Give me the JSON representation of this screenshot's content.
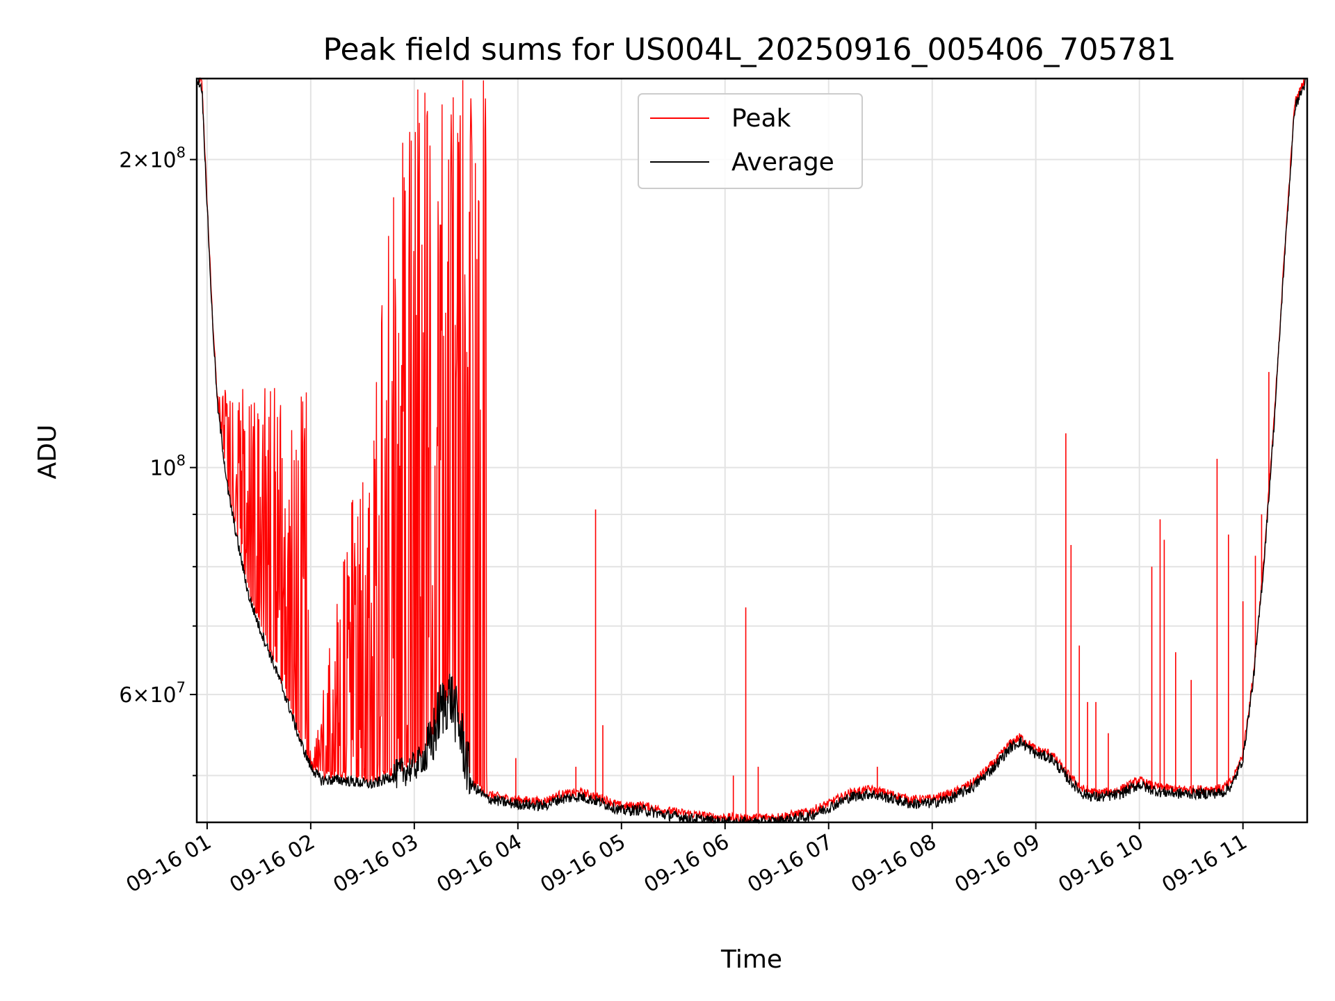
{
  "chart_data": {
    "type": "line",
    "title": "Peak field sums for US004L_20250916_005406_705781",
    "xlabel": "Time",
    "ylabel": "ADU",
    "xlim_hours": [
      0.9,
      11.62
    ],
    "ylim": [
      45000000,
      240000000
    ],
    "y_scale": "log",
    "grid": true,
    "legend_position": "upper center",
    "x_ticks": [
      {
        "hour": 1,
        "label": "09-16 01"
      },
      {
        "hour": 2,
        "label": "09-16 02"
      },
      {
        "hour": 3,
        "label": "09-16 03"
      },
      {
        "hour": 4,
        "label": "09-16 04"
      },
      {
        "hour": 5,
        "label": "09-16 05"
      },
      {
        "hour": 6,
        "label": "09-16 06"
      },
      {
        "hour": 7,
        "label": "09-16 07"
      },
      {
        "hour": 8,
        "label": "09-16 08"
      },
      {
        "hour": 9,
        "label": "09-16 09"
      },
      {
        "hour": 10,
        "label": "09-16 10"
      },
      {
        "hour": 11,
        "label": "09-16 11"
      }
    ],
    "y_major_ticks": [
      {
        "value": 60000000,
        "mant": "6",
        "exp": "7"
      },
      {
        "value": 100000000,
        "mant": "",
        "exp": "8"
      },
      {
        "value": 200000000,
        "mant": "2",
        "exp": "8"
      }
    ],
    "y_minor_ticks": [
      50000000,
      70000000,
      80000000,
      90000000
    ],
    "series": [
      {
        "name": "Peak",
        "color": "#ff0000",
        "spike_ranges": [
          {
            "from": 1.1,
            "to": 2.0,
            "max": 120000000
          },
          {
            "from": 2.0,
            "to": 2.95,
            "max": 240000000
          },
          {
            "from": 2.95,
            "to": 3.7,
            "max": 240000000
          }
        ],
        "spikes": [
          [
            3.98,
            52000000
          ],
          [
            4.56,
            51000000
          ],
          [
            4.75,
            91000000
          ],
          [
            4.82,
            56000000
          ],
          [
            6.08,
            50000000
          ],
          [
            6.2,
            73000000
          ],
          [
            6.32,
            51000000
          ],
          [
            7.47,
            51000000
          ],
          [
            9.29,
            108000000
          ],
          [
            9.34,
            84000000
          ],
          [
            9.42,
            67000000
          ],
          [
            9.5,
            59000000
          ],
          [
            9.58,
            59000000
          ],
          [
            9.7,
            55000000
          ],
          [
            10.12,
            80000000
          ],
          [
            10.2,
            89000000
          ],
          [
            10.24,
            85000000
          ],
          [
            10.35,
            66000000
          ],
          [
            10.5,
            62000000
          ],
          [
            10.75,
            102000000
          ],
          [
            10.86,
            86000000
          ],
          [
            11.0,
            74000000
          ],
          [
            11.12,
            82000000
          ],
          [
            11.18,
            90000000
          ],
          [
            11.25,
            124000000
          ]
        ]
      },
      {
        "name": "Average",
        "color": "#000000",
        "points": [
          [
            0.9,
            240000000
          ],
          [
            0.95,
            235000000
          ],
          [
            1.0,
            180000000
          ],
          [
            1.05,
            140000000
          ],
          [
            1.1,
            115000000
          ],
          [
            1.2,
            95000000
          ],
          [
            1.3,
            84000000
          ],
          [
            1.4,
            75000000
          ],
          [
            1.5,
            70000000
          ],
          [
            1.6,
            66000000
          ],
          [
            1.7,
            62000000
          ],
          [
            1.8,
            58000000
          ],
          [
            1.9,
            54000000
          ],
          [
            2.0,
            51000000
          ],
          [
            2.1,
            49500000
          ],
          [
            2.3,
            49500000
          ],
          [
            2.6,
            49000000
          ],
          [
            2.8,
            50000000
          ],
          [
            3.0,
            51000000
          ],
          [
            3.15,
            53000000
          ],
          [
            3.25,
            58000000
          ],
          [
            3.35,
            60000000
          ],
          [
            3.45,
            55000000
          ],
          [
            3.55,
            49000000
          ],
          [
            3.7,
            47500000
          ],
          [
            3.9,
            47000000
          ],
          [
            4.1,
            46800000
          ],
          [
            4.25,
            46700000
          ],
          [
            4.4,
            47400000
          ],
          [
            4.6,
            47700000
          ],
          [
            4.8,
            47100000
          ],
          [
            5.0,
            46200000
          ],
          [
            5.2,
            46300000
          ],
          [
            5.4,
            45800000
          ],
          [
            5.6,
            45500000
          ],
          [
            5.9,
            45100000
          ],
          [
            6.2,
            45000000
          ],
          [
            6.5,
            45100000
          ],
          [
            6.8,
            45600000
          ],
          [
            7.0,
            46500000
          ],
          [
            7.2,
            47600000
          ],
          [
            7.4,
            48000000
          ],
          [
            7.6,
            47500000
          ],
          [
            7.8,
            46900000
          ],
          [
            8.0,
            47000000
          ],
          [
            8.2,
            47600000
          ],
          [
            8.4,
            48800000
          ],
          [
            8.6,
            51000000
          ],
          [
            8.75,
            53200000
          ],
          [
            8.85,
            54000000
          ],
          [
            9.0,
            52500000
          ],
          [
            9.15,
            52000000
          ],
          [
            9.3,
            49800000
          ],
          [
            9.45,
            48000000
          ],
          [
            9.6,
            47600000
          ],
          [
            9.8,
            47900000
          ],
          [
            10.0,
            49000000
          ],
          [
            10.1,
            48500000
          ],
          [
            10.2,
            48200000
          ],
          [
            10.4,
            48000000
          ],
          [
            10.6,
            48000000
          ],
          [
            10.8,
            48100000
          ],
          [
            10.9,
            49000000
          ],
          [
            11.0,
            52000000
          ],
          [
            11.1,
            62000000
          ],
          [
            11.2,
            80000000
          ],
          [
            11.3,
            110000000
          ],
          [
            11.4,
            160000000
          ],
          [
            11.5,
            225000000
          ],
          [
            11.62,
            240000000
          ]
        ]
      }
    ]
  }
}
